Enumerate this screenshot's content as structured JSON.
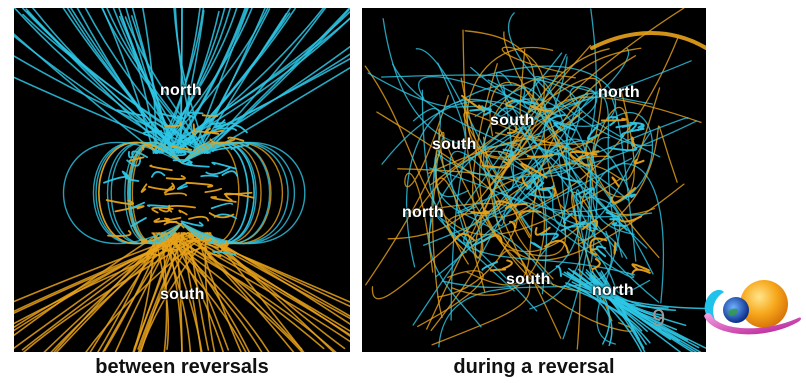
{
  "panels": {
    "left": {
      "labels": {
        "north": "north",
        "south": "south"
      },
      "caption": "between reversals"
    },
    "right": {
      "labels": {
        "north_right": "north",
        "south_top": "south",
        "south_left": "south",
        "north_left": "north",
        "south_bottom": "south",
        "north_bottom": "north"
      },
      "caption": "during a reversal"
    }
  },
  "page_number": "9",
  "colors": {
    "field_line_outward": "#2ec7e6",
    "field_line_inward": "#e8a21a",
    "background": "#000000"
  },
  "logo": {
    "icon": "planet-orbit-logo-icon"
  }
}
